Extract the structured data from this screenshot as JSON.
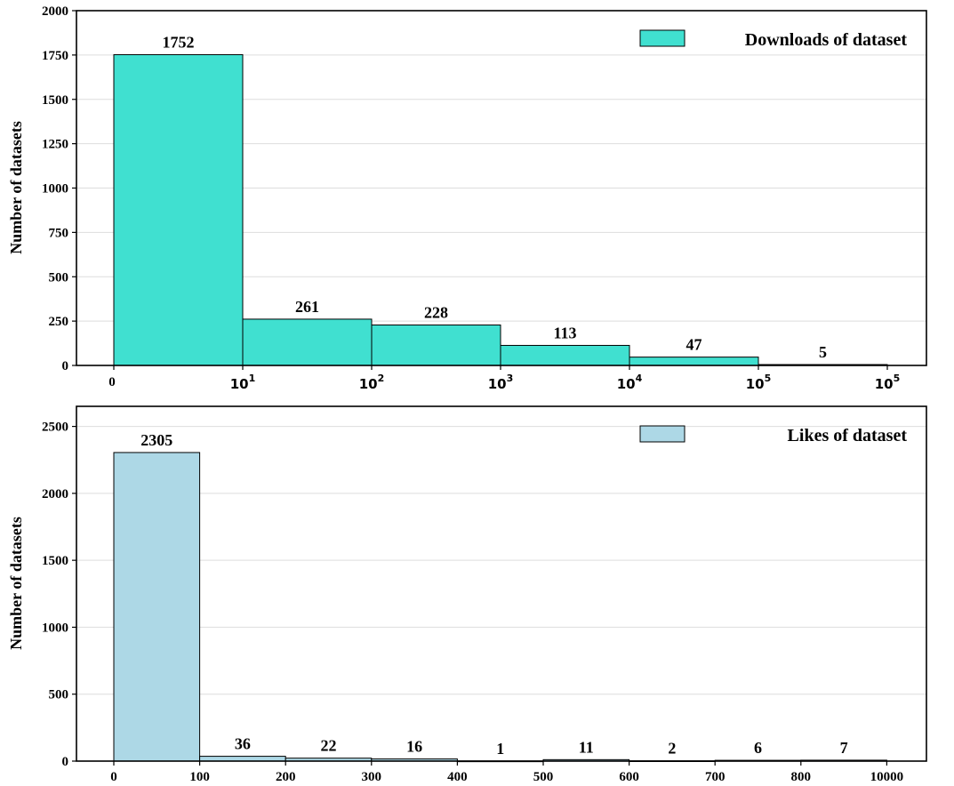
{
  "chart_data": [
    {
      "type": "bar",
      "ylabel": "Number of datasets",
      "legend": "Downloads of dataset",
      "legend_position": "top-right",
      "grid": true,
      "color": "#40E0D0",
      "ylim": [
        0,
        2000
      ],
      "yticks": [
        0,
        250,
        500,
        750,
        1000,
        1250,
        1500,
        1750,
        2000
      ],
      "xtick_labels": [
        {
          "base": "0",
          "exp": ""
        },
        {
          "base": "10",
          "exp": "1"
        },
        {
          "base": "10",
          "exp": "2"
        },
        {
          "base": "10",
          "exp": "3"
        },
        {
          "base": "10",
          "exp": "4"
        },
        {
          "base": "10",
          "exp": "5"
        },
        {
          "base": "10",
          "exp": "5"
        }
      ],
      "values": [
        1752,
        261,
        228,
        113,
        47,
        5
      ]
    },
    {
      "type": "bar",
      "ylabel": "Number of datasets",
      "legend": "Likes of dataset",
      "legend_position": "top-right",
      "grid": true,
      "color": "#ADD8E6",
      "ylim": [
        0,
        2650
      ],
      "yticks": [
        0,
        500,
        1000,
        1500,
        2000,
        2500
      ],
      "xtick_labels": [
        "0",
        "100",
        "200",
        "300",
        "400",
        "500",
        "600",
        "700",
        "800",
        "10000"
      ],
      "values": [
        2305,
        36,
        22,
        16,
        1,
        11,
        2,
        6,
        7
      ]
    }
  ]
}
